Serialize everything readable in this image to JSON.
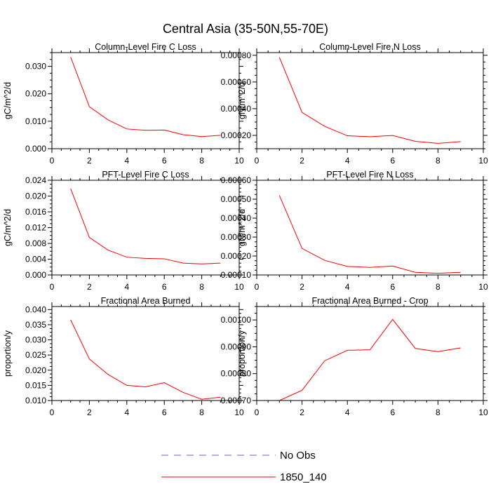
{
  "title": "Central Asia (35-50N,55-70E)",
  "chart_data": [
    {
      "type": "line",
      "title": "Column-Level Fire C Loss",
      "ylabel": "gC/m^2/d",
      "xlim": [
        0,
        10
      ],
      "xticks": [
        0,
        2,
        4,
        6,
        8,
        10
      ],
      "xticklabels": [
        "0",
        "2",
        "4",
        "6",
        "8",
        "10"
      ],
      "ylim": [
        0,
        0.035
      ],
      "yticks": [
        0,
        0.01,
        0.02,
        0.03
      ],
      "yticklabels": [
        "0.000",
        "0.010",
        "0.020",
        "0.030"
      ],
      "x": [
        1,
        2,
        3,
        4,
        5,
        6,
        7,
        8,
        9
      ],
      "series": [
        {
          "name": "1850_140",
          "color": "#ff0000",
          "values": [
            0.0334,
            0.0153,
            0.0105,
            0.0072,
            0.0067,
            0.0068,
            0.0051,
            0.0044,
            0.0049
          ]
        }
      ]
    },
    {
      "type": "line",
      "title": "Column-Level Fire N Loss",
      "ylabel": "gN/m^2/d",
      "xlim": [
        0,
        10
      ],
      "xticks": [
        0,
        2,
        4,
        6,
        8,
        10
      ],
      "xticklabels": [
        "0",
        "2",
        "4",
        "6",
        "8",
        "10"
      ],
      "ylim": [
        0.0001,
        0.00082
      ],
      "yticks": [
        0.0002,
        0.0004,
        0.0006,
        0.0008
      ],
      "yticklabels": [
        "0.00020",
        "0.00040",
        "0.00060",
        "0.00080"
      ],
      "x": [
        1,
        2,
        3,
        4,
        5,
        6,
        7,
        8,
        9
      ],
      "series": [
        {
          "name": "1850_140",
          "color": "#ff0000",
          "values": [
            0.000785,
            0.000372,
            0.000268,
            0.000197,
            0.00019,
            0.000199,
            0.000155,
            0.00014,
            0.000153
          ]
        }
      ]
    },
    {
      "type": "line",
      "title": "PFT-Level Fire C Loss",
      "ylabel": "gC/m^2/d",
      "xlim": [
        0,
        10
      ],
      "xticks": [
        0,
        2,
        4,
        6,
        8,
        10
      ],
      "xticklabels": [
        "0",
        "2",
        "4",
        "6",
        "8",
        "10"
      ],
      "ylim": [
        0,
        0.024
      ],
      "yticks": [
        0,
        0.004,
        0.008,
        0.012,
        0.016,
        0.02,
        0.024
      ],
      "yticklabels": [
        "0.000",
        "0.004",
        "0.008",
        "0.012",
        "0.016",
        "0.020",
        "0.024"
      ],
      "x": [
        1,
        2,
        3,
        4,
        5,
        6,
        7,
        8,
        9
      ],
      "series": [
        {
          "name": "1850_140",
          "color": "#ff0000",
          "values": [
            0.0219,
            0.0095,
            0.0063,
            0.0045,
            0.0042,
            0.0041,
            0.003,
            0.0028,
            0.003
          ]
        }
      ]
    },
    {
      "type": "line",
      "title": "PFT-Level Fire N Loss",
      "ylabel": "gN/m^2/d",
      "xlim": [
        0,
        10
      ],
      "xticks": [
        0,
        2,
        4,
        6,
        8,
        10
      ],
      "xticklabels": [
        "0",
        "2",
        "4",
        "6",
        "8",
        "10"
      ],
      "ylim": [
        0.0001,
        0.0006
      ],
      "yticks": [
        0.0001,
        0.0002,
        0.0003,
        0.0004,
        0.0005,
        0.0006
      ],
      "yticklabels": [
        "0.00010",
        "0.00020",
        "0.00030",
        "0.00040",
        "0.00050",
        "0.00060"
      ],
      "x": [
        1,
        2,
        3,
        4,
        5,
        6,
        7,
        8,
        9
      ],
      "series": [
        {
          "name": "1850_140",
          "color": "#ff0000",
          "values": [
            0.00052,
            0.00024,
            0.000177,
            0.000145,
            0.00014,
            0.000147,
            0.000114,
            0.000109,
            0.000114
          ]
        }
      ]
    },
    {
      "type": "line",
      "title": "Fractional Area Burned",
      "ylabel": "proportion/y",
      "xlim": [
        0,
        10
      ],
      "xticks": [
        0,
        2,
        4,
        6,
        8,
        10
      ],
      "xticklabels": [
        "0",
        "2",
        "4",
        "6",
        "8",
        "10"
      ],
      "ylim": [
        0.01,
        0.041
      ],
      "yticks": [
        0.01,
        0.015,
        0.02,
        0.025,
        0.03,
        0.035,
        0.04
      ],
      "yticklabels": [
        "0.010",
        "0.015",
        "0.020",
        "0.025",
        "0.030",
        "0.035",
        "0.040"
      ],
      "x": [
        1,
        2,
        3,
        4,
        5,
        6,
        7,
        8,
        9
      ],
      "series": [
        {
          "name": "1850_140",
          "color": "#ff0000",
          "values": [
            0.0366,
            0.0237,
            0.0186,
            0.015,
            0.0145,
            0.0159,
            0.0127,
            0.0104,
            0.0111
          ]
        }
      ]
    },
    {
      "type": "line",
      "title": "Fractional Area Burned - Crop",
      "ylabel": "proportion/y",
      "xlim": [
        0,
        10
      ],
      "xticks": [
        0,
        2,
        4,
        6,
        8,
        10
      ],
      "xticklabels": [
        "0",
        "2",
        "4",
        "6",
        "8",
        "10"
      ],
      "ylim": [
        0.0007,
        0.00105
      ],
      "yticks": [
        0.0007,
        0.0008,
        0.0009,
        0.001
      ],
      "yticklabels": [
        "0.00070",
        "0.00080",
        "0.00090",
        "0.00100"
      ],
      "x": [
        1,
        2,
        3,
        4,
        5,
        6,
        7,
        8,
        9
      ],
      "series": [
        {
          "name": "1850_140",
          "color": "#ff0000",
          "values": [
            0.0007,
            0.000738,
            0.000848,
            0.000887,
            0.000889,
            0.001002,
            0.000894,
            0.000882,
            0.000896
          ]
        }
      ]
    }
  ],
  "legend": [
    {
      "label": "No Obs",
      "color": "#6666cc",
      "style": "dashed"
    },
    {
      "label": "1850_140",
      "color": "#ff0000",
      "style": "solid"
    }
  ]
}
